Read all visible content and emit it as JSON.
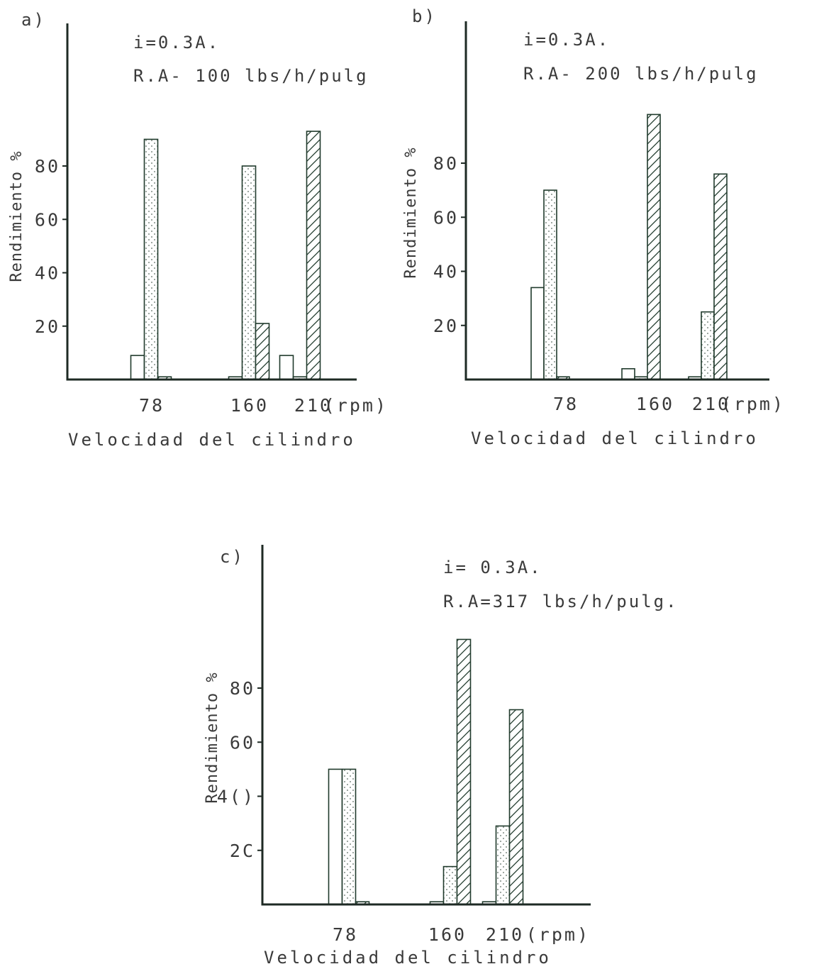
{
  "colors": {
    "axis": "#1e2a24",
    "bar_outline": "#203a2c",
    "dot_fill": "#5a6a60",
    "hatch": "#203a2c",
    "text": "#3a3a3a"
  },
  "chart_data": [
    {
      "type": "bar",
      "panel": "a)",
      "annotations": [
        "i=0.3A.",
        "R.A- 100 lbs/h/pulg"
      ],
      "categories": [
        "78",
        "160",
        "210"
      ],
      "x_unit": "(rpm)",
      "xlabel": "Velocidad del cilindro",
      "ylabel": "Rendimiento %",
      "yticks": [
        "20",
        "40",
        "60",
        "80"
      ],
      "ylim": [
        0,
        110
      ],
      "grid": false,
      "series": [
        {
          "pattern": "open",
          "values": [
            9,
            1,
            9
          ]
        },
        {
          "pattern": "dotted",
          "values": [
            90,
            80,
            1
          ]
        },
        {
          "pattern": "hatched",
          "values": [
            1,
            21,
            93
          ]
        }
      ]
    },
    {
      "type": "bar",
      "panel": "b)",
      "annotations": [
        "i=0.3A.",
        "R.A- 200 lbs/h/pulg"
      ],
      "categories": [
        "78",
        "160",
        "210"
      ],
      "x_unit": "(rpm)",
      "xlabel": "Velocidad del cilindro",
      "ylabel": "Rendimiento %",
      "yticks": [
        "20",
        "40",
        "60",
        "80"
      ],
      "ylim": [
        0,
        110
      ],
      "grid": false,
      "series": [
        {
          "pattern": "open",
          "values": [
            34,
            4,
            1
          ]
        },
        {
          "pattern": "dotted",
          "values": [
            70,
            1,
            25
          ]
        },
        {
          "pattern": "hatched",
          "values": [
            1,
            98,
            76
          ]
        }
      ]
    },
    {
      "type": "bar",
      "panel": "c)",
      "annotations": [
        "i= 0.3A.",
        "R.A=317 lbs/h/pulg."
      ],
      "categories": [
        "78",
        "160",
        "210"
      ],
      "x_unit": "(rpm)",
      "xlabel": "Velocidad del cilindro",
      "ylabel": "Rendimiento %",
      "yticks": [
        "2C",
        "4()",
        "60",
        "80"
      ],
      "ylim": [
        0,
        110
      ],
      "grid": false,
      "series": [
        {
          "pattern": "open",
          "values": [
            50,
            1,
            1
          ]
        },
        {
          "pattern": "dotted",
          "values": [
            50,
            14,
            29
          ]
        },
        {
          "pattern": "hatched",
          "values": [
            1,
            98,
            72
          ]
        }
      ]
    }
  ]
}
